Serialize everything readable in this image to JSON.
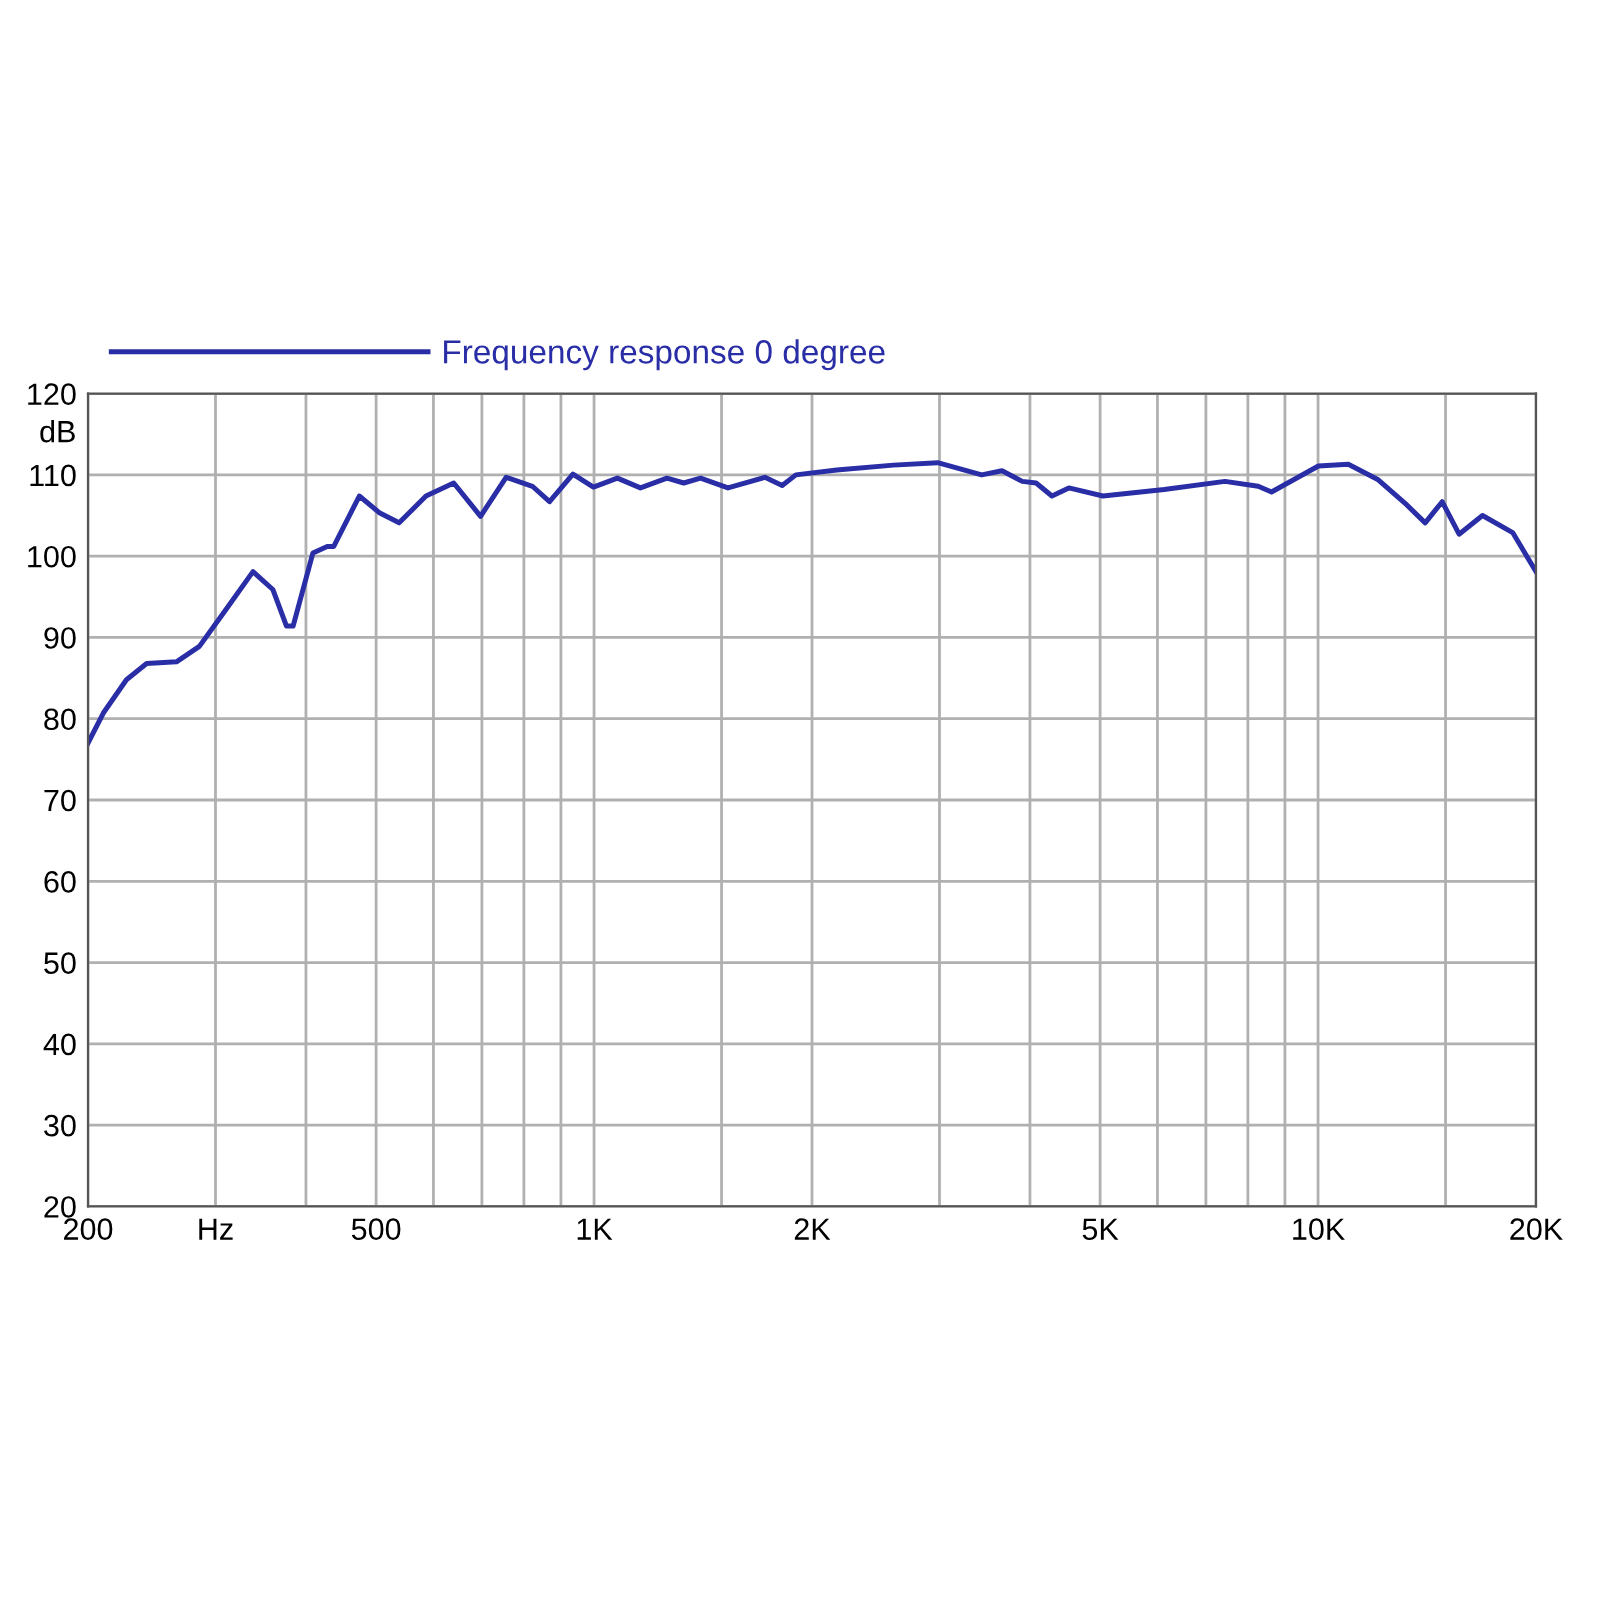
{
  "chart_data": {
    "type": "line",
    "ylabel": "dB",
    "log": "x",
    "grid": true,
    "legend": "top left",
    "marker": "none",
    "line_style": "solid",
    "xlim": [
      200,
      20000
    ],
    "ylim": [
      20,
      120
    ],
    "xticks": [
      200,
      {
        "value": 300,
        "label": "Hz"
      },
      {
        "value": 400,
        "label": null
      },
      500,
      {
        "value": 600,
        "label": null
      },
      {
        "value": 700,
        "label": null
      },
      {
        "value": 800,
        "label": null
      },
      {
        "value": 900,
        "label": null
      },
      {
        "value": 1000,
        "label": "1K"
      },
      {
        "value": 1500,
        "label": null
      },
      {
        "value": 2000,
        "label": "2K"
      },
      {
        "value": 3000,
        "label": null
      },
      {
        "value": 4000,
        "label": null
      },
      {
        "value": 5000,
        "label": "5K"
      },
      {
        "value": 6000,
        "label": null
      },
      {
        "value": 7000,
        "label": null
      },
      {
        "value": 8000,
        "label": null
      },
      {
        "value": 9000,
        "label": null
      },
      {
        "value": 10000,
        "label": "10K"
      },
      {
        "value": 15000,
        "label": null
      },
      {
        "value": 20000,
        "label": "20K"
      }
    ],
    "yticks": [
      20,
      30,
      40,
      50,
      60,
      70,
      80,
      90,
      100,
      110,
      120
    ],
    "series": [
      {
        "name": "Frequency response 0 degree",
        "color": "#2a2ea6",
        "x": [
          200,
          210,
          226,
          241,
          265,
          285,
          310,
          338,
          360,
          376,
          384,
          409,
          428,
          437,
          474,
          506,
          538,
          586,
          640,
          697,
          756,
          822,
          868,
          935,
          998,
          1077,
          1159,
          1261,
          1330,
          1403,
          1531,
          1722,
          1819,
          1900,
          2164,
          2590,
          2983,
          3431,
          3660,
          3904,
          4079,
          4290,
          4527,
          5046,
          6129,
          7436,
          8266,
          8624,
          10011,
          11010,
          12110,
          13190,
          14060,
          14840,
          15660,
          16870,
          18570,
          20000
        ],
        "values": [
          77,
          80.7,
          84.8,
          86.8,
          87,
          88.9,
          93.4,
          98.1,
          95.9,
          91.4,
          91.4,
          100.4,
          101.2,
          101.2,
          107.4,
          105.3,
          104.1,
          107.4,
          109,
          104.9,
          109.7,
          108.6,
          106.7,
          110.1,
          108.5,
          109.6,
          108.4,
          109.6,
          109,
          109.6,
          108.4,
          109.7,
          108.7,
          110,
          110.6,
          111.2,
          111.5,
          110,
          110.5,
          109.2,
          109,
          107.4,
          108.4,
          107.4,
          108.2,
          109.2,
          108.6,
          107.9,
          111.1,
          111.3,
          109.4,
          106.5,
          104.1,
          106.7,
          102.7,
          105,
          102.9,
          98.1
        ]
      }
    ]
  }
}
